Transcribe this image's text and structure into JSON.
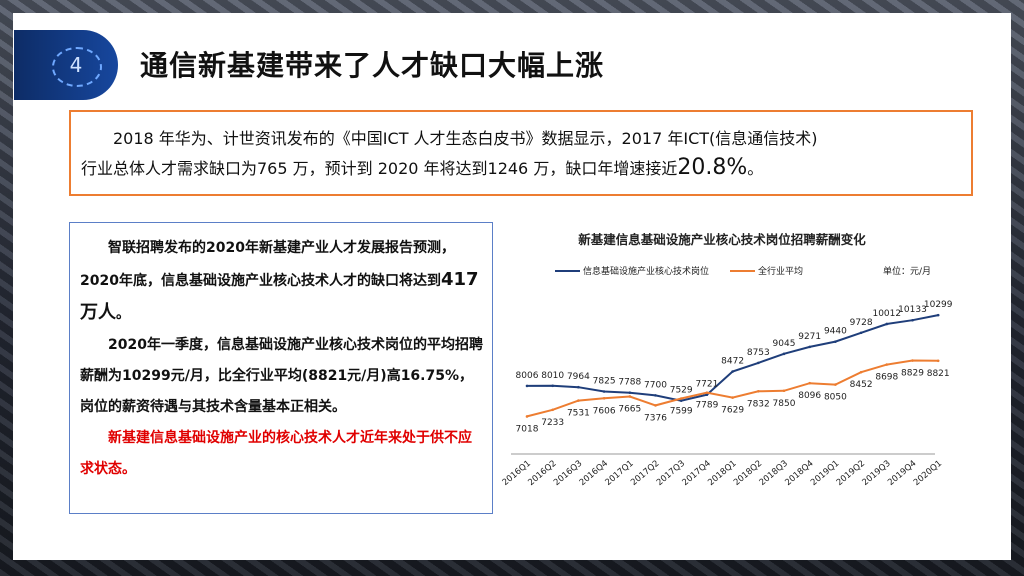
{
  "section_number": "4",
  "title": "通信新基建带来了人才缺口大幅上涨",
  "summary": {
    "line1": "2018 年华为、计世资讯发布的《中国ICT 人才生态白皮书》数据显示，2017 年ICT(信息通信技术)",
    "line2_pre": "行业总体人才需求缺口为765 万，预计到 2020 年将达到1246 万，缺口年增速接近",
    "line2_big": "20.8%",
    "line2_post": "。"
  },
  "detail": {
    "p1a": "智联招聘发布的2020年新基建产业人才发展报告预测，2020年底，信息基础设施产业核心技术人才的缺口将达到",
    "p1_big": "417万人",
    "p1_end": "。",
    "p2": "2020年一季度，信息基础设施产业核心技术岗位的平均招聘薪酬为10299元/月，比全行业平均(8821元/月)高16.75%，岗位的薪资待遇与其技术含量基本正相关。",
    "p3": "新基建信息基础设施产业的核心技术人才近年来处于供不应求状态。"
  },
  "colors": {
    "accent_orange": "#ed7d31",
    "navy": "#1f3e7a",
    "red_text": "#e00000"
  },
  "chart_data": {
    "type": "line",
    "title": "新基建信息基础设施产业核心技术岗位招聘薪酬变化",
    "unit_label": "单位：元/月",
    "categories": [
      "2016Q1",
      "2016Q2",
      "2016Q3",
      "2016Q4",
      "2017Q1",
      "2017Q2",
      "2017Q3",
      "2017Q4",
      "2018Q1",
      "2018Q2",
      "2018Q3",
      "2018Q4",
      "2019Q1",
      "2019Q2",
      "2019Q3",
      "2019Q4",
      "2020Q1"
    ],
    "series": [
      {
        "name": "信息基础设施产业核心技术岗位",
        "color": "#1f3e7a",
        "values": [
          8006,
          8010,
          7964,
          7825,
          7788,
          7700,
          7529,
          7721,
          8472,
          8753,
          9045,
          9271,
          9440,
          9728,
          10012,
          10133,
          10299
        ]
      },
      {
        "name": "全行业平均",
        "color": "#ed7d31",
        "values": [
          7018,
          7233,
          7531,
          7606,
          7665,
          7376,
          7599,
          7789,
          7629,
          7832,
          7850,
          8096,
          8050,
          8452,
          8698,
          8829,
          8821
        ]
      }
    ],
    "legend_position": "top-left",
    "grid": false
  }
}
